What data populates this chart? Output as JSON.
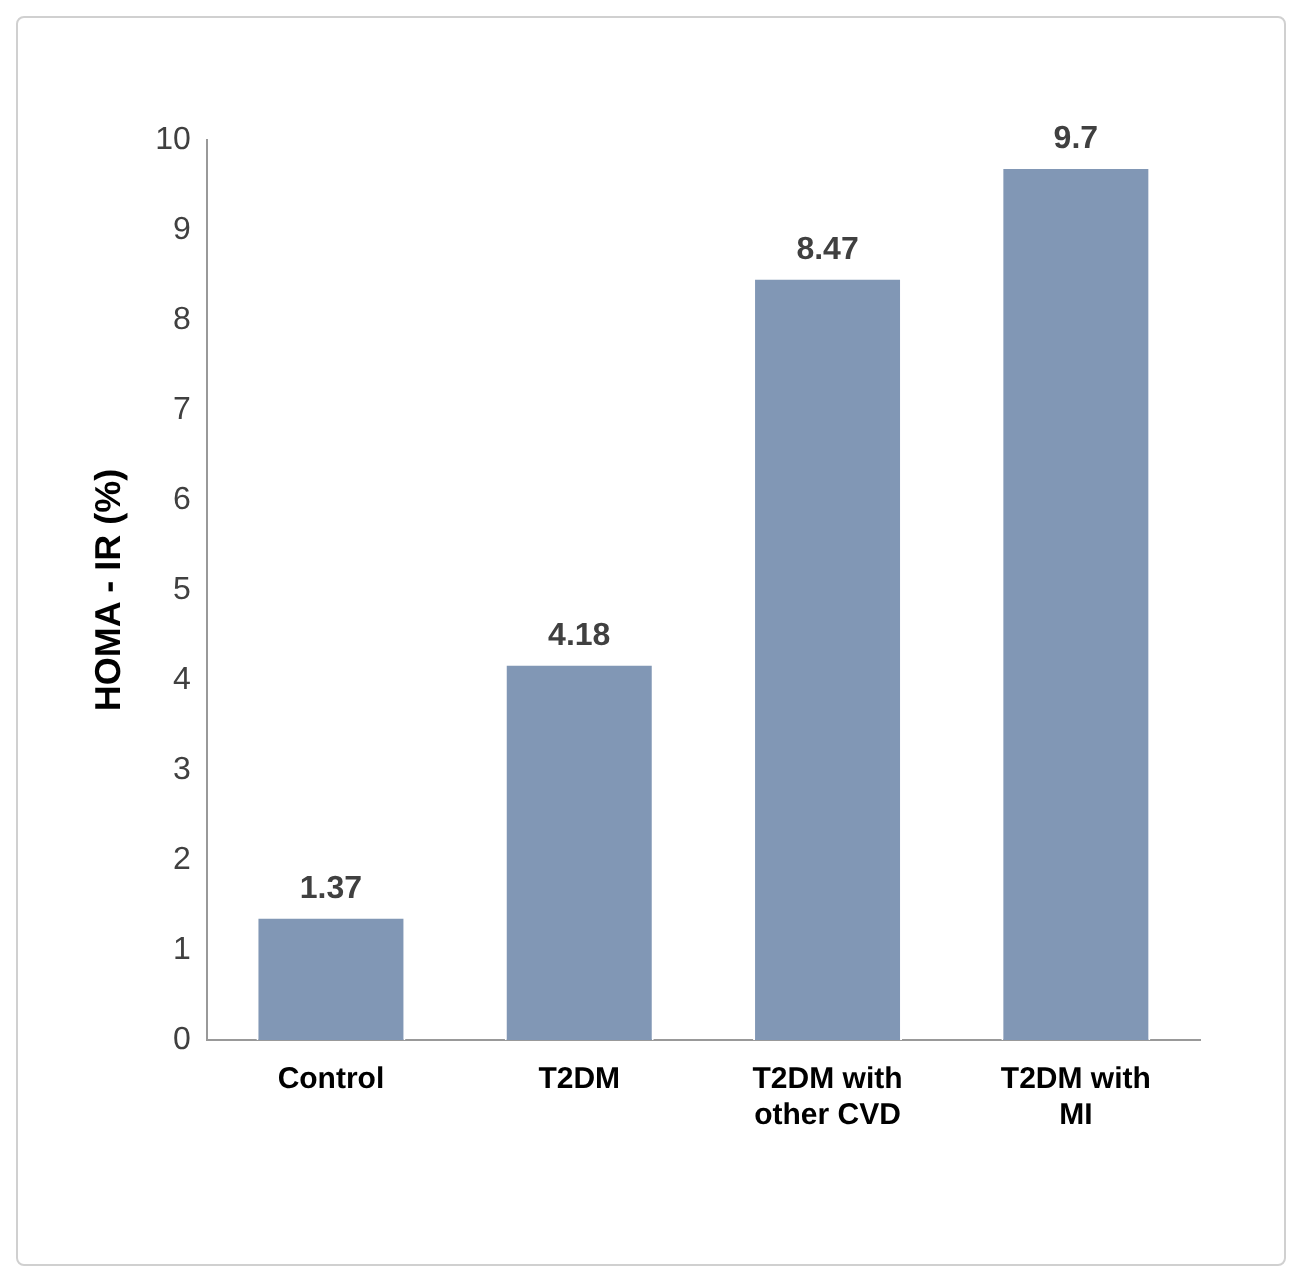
{
  "chart_data": {
    "type": "bar",
    "ylabel": "HOMA - IR (%)",
    "categories": [
      "Control",
      "T2DM",
      "T2DM with other CVD",
      "T2DM with MI"
    ],
    "values": [
      1.37,
      4.18,
      8.47,
      9.7
    ],
    "color": "#8197b5",
    "ylim": [
      0,
      10
    ],
    "yticks": [
      0,
      1,
      2,
      3,
      4,
      5,
      6,
      7,
      8,
      9,
      10
    ],
    "grid": false,
    "data_labels": true
  }
}
